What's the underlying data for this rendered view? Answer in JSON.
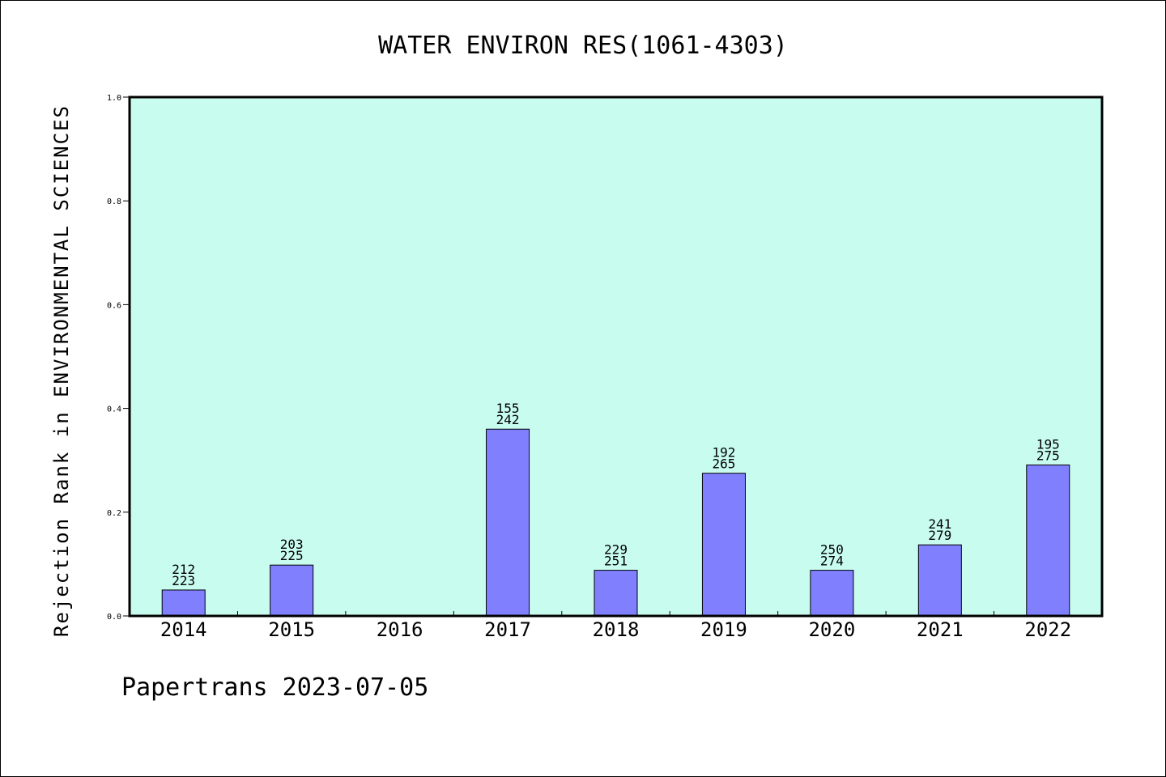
{
  "chart_data": {
    "type": "bar",
    "title": "WATER ENVIRON RES(1061-4303)",
    "xlabel": "",
    "ylabel": "Rejection Rank in ENVIRONMENTAL SCIENCES",
    "ylim": [
      0,
      1.0
    ],
    "yticks": [
      "0.0",
      "0.2",
      "0.4",
      "0.6",
      "0.8",
      "1.0"
    ],
    "categories": [
      "2014",
      "2015",
      "2016",
      "2017",
      "2018",
      "2019",
      "2020",
      "2021",
      "2022"
    ],
    "values": [
      0.05,
      0.098,
      null,
      0.36,
      0.088,
      0.275,
      0.088,
      0.137,
      0.291
    ],
    "labels_top": [
      "212",
      "203",
      "",
      "155",
      "229",
      "192",
      "250",
      "241",
      "195"
    ],
    "labels_bottom": [
      "223",
      "225",
      "",
      "242",
      "251",
      "265",
      "274",
      "279",
      "275"
    ],
    "grid": false,
    "colors": {
      "plot_background": "#c8fcee",
      "bar_fill": "#8080ff",
      "bar_stroke": "#000000",
      "axes": "#000000"
    }
  },
  "footer": {
    "text": "Papertrans 2023-07-05"
  }
}
